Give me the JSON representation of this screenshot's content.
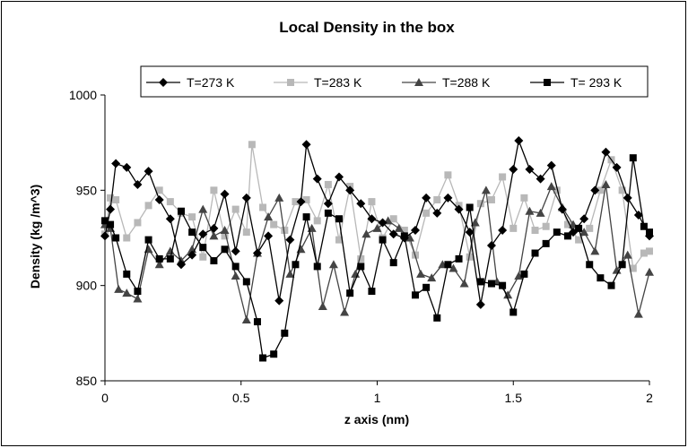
{
  "chart_data": {
    "type": "line",
    "title": "Local Density in the box",
    "xlabel": "z axis (nm)",
    "ylabel": "Density (kg /m^3)",
    "xlim": [
      0,
      2
    ],
    "ylim": [
      850,
      1000
    ],
    "xticks": [
      "0",
      "0.5",
      "1",
      "1.5",
      "2"
    ],
    "yticks": [
      "850",
      "900",
      "950",
      "1000"
    ],
    "grid": false,
    "legend_position": "top",
    "series": [
      {
        "name": "T=273 K",
        "color": "#000000",
        "marker": "diamond",
        "x": [
          0,
          0.02,
          0.04,
          0.08,
          0.12,
          0.16,
          0.2,
          0.24,
          0.28,
          0.32,
          0.36,
          0.4,
          0.44,
          0.48,
          0.52,
          0.56,
          0.6,
          0.64,
          0.68,
          0.72,
          0.74,
          0.78,
          0.82,
          0.86,
          0.9,
          0.94,
          0.98,
          1.02,
          1.06,
          1.1,
          1.14,
          1.18,
          1.22,
          1.26,
          1.3,
          1.34,
          1.38,
          1.42,
          1.46,
          1.5,
          1.52,
          1.56,
          1.6,
          1.64,
          1.68,
          1.72,
          1.76,
          1.8,
          1.84,
          1.88,
          1.92,
          1.96,
          2.0
        ],
        "values": [
          926,
          940,
          964,
          962,
          953,
          960,
          945,
          935,
          911,
          916,
          927,
          930,
          948,
          918,
          946,
          917,
          926,
          892,
          924,
          944,
          974,
          956,
          943,
          957,
          950,
          943,
          935,
          933,
          927,
          925,
          929,
          946,
          938,
          946,
          940,
          928,
          890,
          921,
          929,
          961,
          976,
          961,
          956,
          963,
          940,
          928,
          935,
          950,
          970,
          962,
          946,
          937,
          926
        ]
      },
      {
        "name": "T=283 K",
        "color": "#b8b8b8",
        "marker": "square",
        "x": [
          0,
          0.02,
          0.04,
          0.08,
          0.12,
          0.16,
          0.2,
          0.24,
          0.28,
          0.32,
          0.36,
          0.4,
          0.44,
          0.48,
          0.52,
          0.54,
          0.58,
          0.62,
          0.66,
          0.7,
          0.74,
          0.78,
          0.82,
          0.86,
          0.9,
          0.94,
          0.98,
          1.02,
          1.06,
          1.1,
          1.14,
          1.18,
          1.22,
          1.26,
          1.3,
          1.34,
          1.38,
          1.42,
          1.46,
          1.5,
          1.54,
          1.58,
          1.62,
          1.66,
          1.7,
          1.74,
          1.78,
          1.82,
          1.86,
          1.9,
          1.94,
          1.98,
          2.0
        ],
        "values": [
          927,
          946,
          945,
          925,
          933,
          942,
          950,
          944,
          938,
          936,
          915,
          950,
          926,
          940,
          928,
          974,
          941,
          932,
          929,
          944,
          945,
          934,
          953,
          924,
          952,
          914,
          944,
          925,
          935,
          929,
          916,
          938,
          945,
          958,
          942,
          915,
          943,
          945,
          957,
          930,
          946,
          929,
          931,
          950,
          932,
          924,
          930,
          950,
          966,
          950,
          909,
          917,
          918
        ]
      },
      {
        "name": "T=288 K",
        "color": "#444444",
        "marker": "triangle",
        "x": [
          0,
          0.02,
          0.05,
          0.08,
          0.12,
          0.16,
          0.2,
          0.24,
          0.28,
          0.32,
          0.36,
          0.4,
          0.44,
          0.48,
          0.52,
          0.56,
          0.6,
          0.64,
          0.68,
          0.72,
          0.76,
          0.8,
          0.84,
          0.88,
          0.92,
          0.96,
          1.0,
          1.04,
          1.08,
          1.12,
          1.16,
          1.2,
          1.24,
          1.28,
          1.32,
          1.36,
          1.4,
          1.44,
          1.48,
          1.52,
          1.56,
          1.6,
          1.64,
          1.68,
          1.72,
          1.76,
          1.8,
          1.84,
          1.88,
          1.92,
          1.96,
          2.0
        ],
        "values": [
          932,
          930,
          898,
          896,
          893,
          919,
          911,
          918,
          913,
          919,
          940,
          926,
          929,
          905,
          882,
          917,
          936,
          946,
          906,
          919,
          930,
          889,
          911,
          886,
          906,
          927,
          930,
          934,
          930,
          925,
          906,
          904,
          911,
          909,
          901,
          933,
          950,
          902,
          895,
          905,
          939,
          938,
          952,
          941,
          932,
          928,
          918,
          953,
          908,
          916,
          885,
          907
        ]
      },
      {
        "name": "T= 293 K",
        "color": "#000000",
        "marker": "square",
        "x": [
          0,
          0.02,
          0.04,
          0.08,
          0.12,
          0.16,
          0.2,
          0.24,
          0.28,
          0.32,
          0.36,
          0.4,
          0.44,
          0.48,
          0.52,
          0.56,
          0.58,
          0.62,
          0.66,
          0.7,
          0.74,
          0.78,
          0.82,
          0.86,
          0.9,
          0.94,
          0.98,
          1.02,
          1.06,
          1.1,
          1.14,
          1.18,
          1.22,
          1.26,
          1.3,
          1.34,
          1.38,
          1.42,
          1.46,
          1.5,
          1.54,
          1.58,
          1.62,
          1.66,
          1.7,
          1.74,
          1.78,
          1.82,
          1.86,
          1.9,
          1.94,
          1.98,
          2.0
        ],
        "values": [
          934,
          932,
          925,
          906,
          897,
          924,
          914,
          914,
          939,
          928,
          920,
          913,
          919,
          910,
          902,
          881,
          862,
          864,
          875,
          911,
          936,
          910,
          938,
          935,
          896,
          910,
          897,
          924,
          912,
          926,
          895,
          899,
          883,
          911,
          914,
          941,
          902,
          901,
          900,
          886,
          906,
          917,
          922,
          928,
          926,
          930,
          911,
          904,
          900,
          911,
          967,
          931,
          928
        ]
      }
    ]
  }
}
